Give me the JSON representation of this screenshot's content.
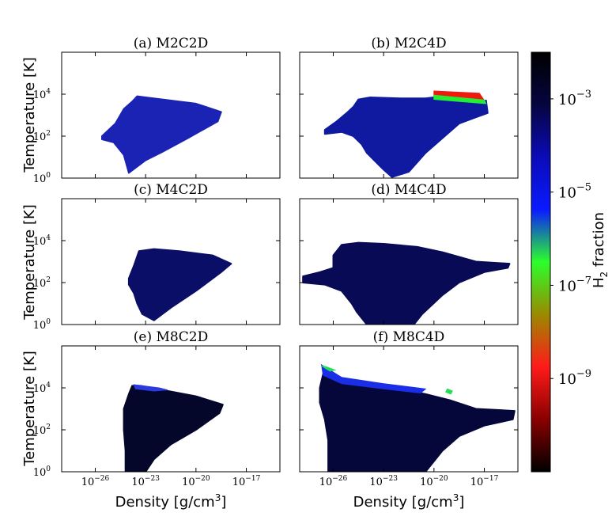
{
  "chart_data": {
    "type": "heatmap",
    "xlabel": "Density [g/cm",
    "xlabel_sup": "3",
    "xlabel_end": "]",
    "ylabel": "Temperature [K]",
    "x_scale": "log",
    "y_scale": "log",
    "x_ticks": [
      {
        "value": 1e-26,
        "label": "10",
        "sup": "−26"
      },
      {
        "value": 1e-23,
        "label": "10",
        "sup": "−23"
      },
      {
        "value": 1e-20,
        "label": "10",
        "sup": "−20"
      },
      {
        "value": 1e-17,
        "label": "10",
        "sup": "−17"
      }
    ],
    "y_ticks": [
      {
        "value": 1,
        "label": "10",
        "sup": "0"
      },
      {
        "value": 100,
        "label": "10",
        "sup": "2"
      },
      {
        "value": 10000,
        "label": "10",
        "sup": "4"
      }
    ],
    "xlim": [
      1e-28,
      1e-15
    ],
    "ylim": [
      1,
      1000000.0
    ],
    "colorbar": {
      "label": "H",
      "label_sub": "2",
      "label_end": " fraction",
      "scale": "log",
      "range": [
        1e-11,
        0.01
      ],
      "ticks": [
        {
          "value": 0.001,
          "label": "10",
          "sup": "−3"
        },
        {
          "value": 1e-05,
          "label": "10",
          "sup": "−5"
        },
        {
          "value": 1e-07,
          "label": "10",
          "sup": "−7"
        },
        {
          "value": 1e-09,
          "label": "10",
          "sup": "−9"
        }
      ],
      "colormap": [
        "#000000",
        "#8a0000",
        "#ff1a1a",
        "#9a8a00",
        "#2bff2b",
        "#0a1aff",
        "#0b0bb8",
        "#050540",
        "#000000"
      ]
    },
    "panels": [
      {
        "title": "(a) M2C2D",
        "body_color": "#1a23b4",
        "outline": [
          [
            -25.6,
            2.0
          ],
          [
            -24.8,
            2.6
          ],
          [
            -24.3,
            3.3
          ],
          [
            -23.8,
            3.65
          ],
          [
            -23.5,
            3.9
          ],
          [
            -23.0,
            3.85
          ],
          [
            -22.0,
            3.75
          ],
          [
            -20.0,
            3.55
          ],
          [
            -18.5,
            3.15
          ],
          [
            -18.7,
            2.7
          ],
          [
            -20.5,
            1.9
          ],
          [
            -22.0,
            1.25
          ],
          [
            -23.0,
            0.85
          ],
          [
            -24.0,
            0.25
          ],
          [
            -24.3,
            1.1
          ],
          [
            -24.9,
            1.7
          ],
          [
            -25.6,
            1.85
          ]
        ],
        "overlay": []
      },
      {
        "title": "(b) M2C4D",
        "body_color": "#101aa0",
        "outline": [
          [
            -26.5,
            2.3
          ],
          [
            -25.8,
            2.7
          ],
          [
            -25.2,
            3.1
          ],
          [
            -24.8,
            3.4
          ],
          [
            -24.5,
            3.75
          ],
          [
            -23.8,
            3.85
          ],
          [
            -22.0,
            3.8
          ],
          [
            -20.5,
            3.8
          ],
          [
            -19.5,
            3.9
          ],
          [
            -17.5,
            3.55
          ],
          [
            -16.9,
            3.7
          ],
          [
            -16.8,
            3.1
          ],
          [
            -17.5,
            2.9
          ],
          [
            -18.5,
            2.6
          ],
          [
            -20.5,
            1.2
          ],
          [
            -21.5,
            0.3
          ],
          [
            -22.5,
            0.05
          ],
          [
            -23.0,
            0.4
          ],
          [
            -23.5,
            0.8
          ],
          [
            -24.0,
            1.2
          ],
          [
            -24.3,
            1.6
          ],
          [
            -24.8,
            2.0
          ],
          [
            -25.5,
            2.2
          ],
          [
            -26.5,
            2.1
          ]
        ],
        "overlay": [
          {
            "name": "red-band",
            "color": "#ee1a10",
            "polygon": [
              [
                -20.0,
                4.15
              ],
              [
                -17.3,
                4.05
              ],
              [
                -17.0,
                3.7
              ],
              [
                -20.0,
                3.9
              ]
            ]
          },
          {
            "name": "green-band",
            "color": "#22ee33",
            "polygon": [
              [
                -20.0,
                3.95
              ],
              [
                -17.0,
                3.72
              ],
              [
                -16.9,
                3.55
              ],
              [
                -20.0,
                3.75
              ]
            ]
          }
        ]
      },
      {
        "title": "(c) M4C2D",
        "body_color": "#0b0e66",
        "outline": [
          [
            -24.0,
            2.2
          ],
          [
            -23.7,
            2.8
          ],
          [
            -23.4,
            3.5
          ],
          [
            -22.5,
            3.6
          ],
          [
            -21.0,
            3.5
          ],
          [
            -19.0,
            3.3
          ],
          [
            -17.9,
            2.9
          ],
          [
            -18.5,
            2.5
          ],
          [
            -20.0,
            1.6
          ],
          [
            -21.5,
            0.8
          ],
          [
            -22.5,
            0.2
          ],
          [
            -23.2,
            0.5
          ],
          [
            -23.5,
            1.0
          ],
          [
            -23.7,
            1.5
          ],
          [
            -24.0,
            1.9
          ]
        ],
        "overlay": []
      },
      {
        "title": "(d) M4C4D",
        "body_color": "#080a55",
        "outline": [
          [
            -27.8,
            2.3
          ],
          [
            -26.8,
            2.5
          ],
          [
            -26.0,
            2.7
          ],
          [
            -26.0,
            3.3
          ],
          [
            -25.5,
            3.8
          ],
          [
            -24.5,
            3.9
          ],
          [
            -23.0,
            3.85
          ],
          [
            -21.0,
            3.7
          ],
          [
            -19.5,
            3.45
          ],
          [
            -17.5,
            3.0
          ],
          [
            -15.5,
            2.9
          ],
          [
            -15.6,
            2.7
          ],
          [
            -17.0,
            2.5
          ],
          [
            -18.5,
            2.0
          ],
          [
            -19.5,
            1.4
          ],
          [
            -20.7,
            0.5
          ],
          [
            -21.2,
            0.0
          ],
          [
            -24.0,
            0.0
          ],
          [
            -24.6,
            0.6
          ],
          [
            -24.9,
            1.0
          ],
          [
            -25.5,
            1.6
          ],
          [
            -26.5,
            1.9
          ],
          [
            -27.8,
            2.0
          ]
        ],
        "overlay": []
      },
      {
        "title": "(e) M8C2D",
        "body_color": "#04062a",
        "outline": [
          [
            -24.3,
            3.0
          ],
          [
            -24.0,
            3.7
          ],
          [
            -23.8,
            4.1
          ],
          [
            -23.3,
            4.1
          ],
          [
            -22.0,
            3.9
          ],
          [
            -20.0,
            3.6
          ],
          [
            -18.4,
            3.2
          ],
          [
            -18.6,
            2.8
          ],
          [
            -20.0,
            2.0
          ],
          [
            -21.5,
            1.3
          ],
          [
            -22.5,
            0.6
          ],
          [
            -23.0,
            0.0
          ],
          [
            -24.2,
            0.0
          ],
          [
            -24.2,
            1.0
          ],
          [
            -24.3,
            2.0
          ]
        ],
        "overlay": [
          {
            "name": "blue-cap",
            "color": "#2a3ae0",
            "polygon": [
              [
                -23.7,
                4.15
              ],
              [
                -22.2,
                4.0
              ],
              [
                -21.7,
                3.9
              ],
              [
                -22.5,
                3.85
              ],
              [
                -23.6,
                3.95
              ]
            ]
          }
        ]
      },
      {
        "title": "(f) M8C4D",
        "body_color": "#05073a",
        "outline": [
          [
            -26.8,
            4.0
          ],
          [
            -26.5,
            5.0
          ],
          [
            -26.0,
            4.5
          ],
          [
            -25.0,
            4.3
          ],
          [
            -23.0,
            4.1
          ],
          [
            -20.5,
            3.7
          ],
          [
            -19.0,
            3.4
          ],
          [
            -17.5,
            3.0
          ],
          [
            -15.2,
            2.9
          ],
          [
            -15.3,
            2.5
          ],
          [
            -17.0,
            2.2
          ],
          [
            -18.5,
            1.7
          ],
          [
            -19.5,
            1.0
          ],
          [
            -20.5,
            0.0
          ],
          [
            -26.3,
            0.0
          ],
          [
            -26.3,
            1.5
          ],
          [
            -26.5,
            2.5
          ],
          [
            -26.8,
            3.3
          ]
        ],
        "overlay": [
          {
            "name": "blue-ridge",
            "color": "#1a2ee8",
            "polygon": [
              [
                -26.7,
                5.1
              ],
              [
                -25.5,
                4.5
              ],
              [
                -23.0,
                4.2
              ],
              [
                -20.5,
                3.95
              ],
              [
                -20.8,
                3.75
              ],
              [
                -23.0,
                3.95
              ],
              [
                -25.5,
                4.2
              ],
              [
                -26.6,
                4.6
              ]
            ]
          },
          {
            "name": "green-flecks",
            "color": "#22dd55",
            "polygon": [
              [
                -26.7,
                5.05
              ],
              [
                -26.2,
                4.8
              ],
              [
                -25.9,
                4.85
              ],
              [
                -26.4,
                5.0
              ]
            ]
          },
          {
            "name": "green-flecks-2",
            "color": "#22dd55",
            "polygon": [
              [
                -19.2,
                3.95
              ],
              [
                -18.9,
                3.85
              ],
              [
                -19.0,
                3.7
              ],
              [
                -19.3,
                3.8
              ]
            ]
          }
        ]
      }
    ]
  }
}
